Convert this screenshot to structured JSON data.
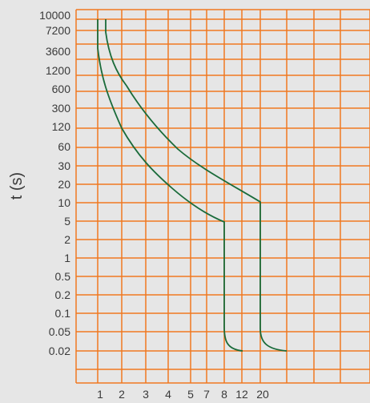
{
  "chart_data": {
    "type": "line",
    "ylabel": "t (s)",
    "xlabel": "",
    "y_tick_labels": [
      "10000",
      "7200",
      "3600",
      "1200",
      "600",
      "300",
      "120",
      "60",
      "30",
      "20",
      "10",
      "5",
      "2",
      "1",
      "0.5",
      "0.2",
      "0.1",
      "0.05",
      "0.02"
    ],
    "x_tick_labels": [
      "1",
      "2",
      "3",
      "4",
      "5",
      "7",
      "8",
      "12",
      "20"
    ],
    "grid": true,
    "colors": {
      "background": "#e6e6e6",
      "grid": "#f07820",
      "curve": "#1a6b3a",
      "text": "#3a3a3a"
    },
    "series": [
      {
        "points": [
          {
            "x": "1",
            "y": "10000"
          },
          {
            "x": "1",
            "y": "7200"
          },
          {
            "x": "1",
            "y": "3600"
          },
          {
            "x": "1.1",
            "y": "1200"
          },
          {
            "x": "1.35",
            "y": "600"
          },
          {
            "x": "1.7",
            "y": "300"
          },
          {
            "x": "2",
            "y": "120"
          },
          {
            "x": "2.6",
            "y": "60"
          },
          {
            "x": "3",
            "y": "30"
          },
          {
            "x": "3.6",
            "y": "20"
          },
          {
            "x": "4.8",
            "y": "10"
          },
          {
            "x": "6",
            "y": "6"
          },
          {
            "x": "8",
            "y": "4"
          },
          {
            "x": "8",
            "y": "0.05"
          },
          {
            "x": "8",
            "y": "0.03"
          },
          {
            "x": "12",
            "y": "0.02"
          }
        ]
      },
      {
        "points": [
          {
            "x": "1.3",
            "y": "10000"
          },
          {
            "x": "1.3",
            "y": "7200"
          },
          {
            "x": "1.4",
            "y": "3600"
          },
          {
            "x": "1.6",
            "y": "1200"
          },
          {
            "x": "2",
            "y": "600"
          },
          {
            "x": "2.5",
            "y": "300"
          },
          {
            "x": "3",
            "y": "120"
          },
          {
            "x": "4",
            "y": "60"
          },
          {
            "x": "4.7",
            "y": "30"
          },
          {
            "x": "7",
            "y": "20"
          },
          {
            "x": "20",
            "y": "10"
          },
          {
            "x": "20",
            "y": "0.05"
          },
          {
            "x": "20",
            "y": "0.03"
          },
          {
            "x": "20",
            "y": "0.02"
          }
        ]
      }
    ]
  }
}
